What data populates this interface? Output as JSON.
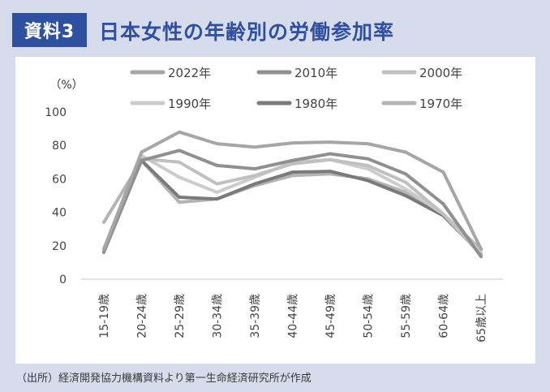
{
  "header": {
    "badge": "資料3",
    "title": "日本女性の年齢別の労働参加率"
  },
  "source": "（出所）経済開発協力機構資料より第一生命経済研究所が作成",
  "chart_data": {
    "type": "line",
    "title": "日本女性の年齢別の労働参加率",
    "ylabel": "（%）",
    "xlabel": "",
    "ylim": [
      0,
      100
    ],
    "yticks": [
      0,
      20,
      40,
      60,
      80,
      100
    ],
    "grid": false,
    "legend_position": "top",
    "categories": [
      "15-19歳",
      "20-24歳",
      "25-29歳",
      "30-34歳",
      "35-39歳",
      "40-44歳",
      "45-49歳",
      "50-54歳",
      "55-59歳",
      "60-64歳",
      "65歳以上"
    ],
    "series": [
      {
        "name": "2022年",
        "color": "#a6a6a6",
        "values": [
          18,
          76,
          88,
          81,
          79,
          81.5,
          82,
          81,
          76,
          64,
          18
        ]
      },
      {
        "name": "2010年",
        "color": "#909090",
        "values": [
          16,
          71,
          77,
          68,
          66,
          71,
          75,
          72,
          63,
          45,
          13.5
        ]
      },
      {
        "name": "2000年",
        "color": "#c0c0c0",
        "values": [
          17,
          72,
          70,
          57,
          62,
          69,
          71.5,
          68,
          58,
          39,
          14.5
        ]
      },
      {
        "name": "1990年",
        "color": "#cccccc",
        "values": [
          18,
          74,
          61,
          52,
          61,
          70,
          71.5,
          66,
          54,
          39,
          16
        ]
      },
      {
        "name": "1980年",
        "color": "#7a7a7a",
        "values": [
          18,
          71,
          49,
          48,
          57,
          64,
          64.5,
          59,
          50,
          38,
          15
        ]
      },
      {
        "name": "1970年",
        "color": "#b4b4b4",
        "values": [
          34,
          71,
          46,
          48,
          56,
          62,
          63,
          60,
          52,
          39,
          17.5
        ]
      }
    ]
  }
}
